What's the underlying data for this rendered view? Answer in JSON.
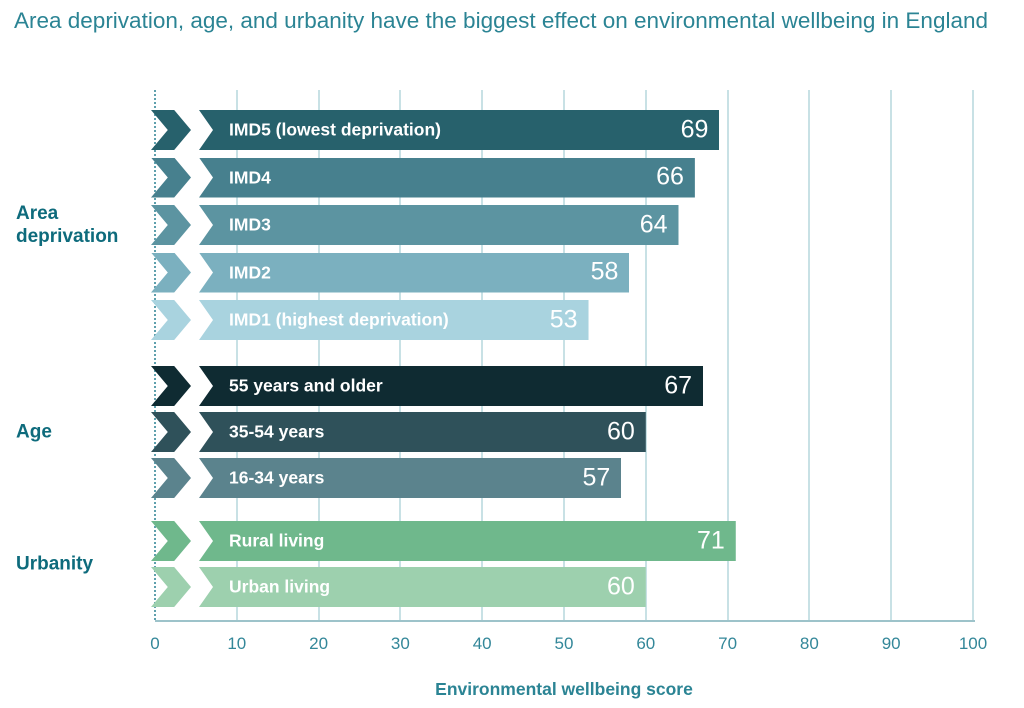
{
  "chart_data": {
    "type": "bar",
    "orientation": "horizontal",
    "title": "Area deprivation, age, and urbanity have the biggest effect on environmental wellbeing in England",
    "xlabel": "Environmental wellbeing score",
    "xlim": [
      0,
      100
    ],
    "x_ticks": [
      "0",
      "10",
      "20",
      "30",
      "40",
      "50",
      "60",
      "70",
      "80",
      "90",
      "100"
    ],
    "grid": true,
    "legend": "none",
    "groups": [
      {
        "label": "Area deprivation",
        "bars": [
          {
            "label": "IMD5 (lowest deprivation)",
            "value": 69,
            "color": "#27616c"
          },
          {
            "label": "IMD4",
            "value": 66,
            "color": "#47808e"
          },
          {
            "label": "IMD3",
            "value": 64,
            "color": "#5c94a1"
          },
          {
            "label": "IMD2",
            "value": 58,
            "color": "#7bb0bf"
          },
          {
            "label": "IMD1 (highest deprivation)",
            "value": 53,
            "color": "#a9d3df"
          }
        ]
      },
      {
        "label": "Age",
        "bars": [
          {
            "label": "55 years and older",
            "value": 67,
            "color": "#0f2b32"
          },
          {
            "label": "35-54 years",
            "value": 60,
            "color": "#2f515a"
          },
          {
            "label": "16-34 years",
            "value": 57,
            "color": "#5b838d"
          }
        ]
      },
      {
        "label": "Urbanity",
        "bars": [
          {
            "label": "Rural living",
            "value": 71,
            "color": "#6fb88c"
          },
          {
            "label": "Urban living",
            "value": 60,
            "color": "#9dd0ae"
          }
        ]
      }
    ],
    "colors": {
      "title_text": "#2b8494",
      "group_label_text": "#0e6b7c",
      "tick_text": "#338799",
      "axis_title_text": "#2b8494",
      "gridline": "#c8e1e5",
      "baseline": "#9dc3ca",
      "dotted_axis": "#5fa0ad",
      "bar_text": "#ffffff"
    }
  }
}
